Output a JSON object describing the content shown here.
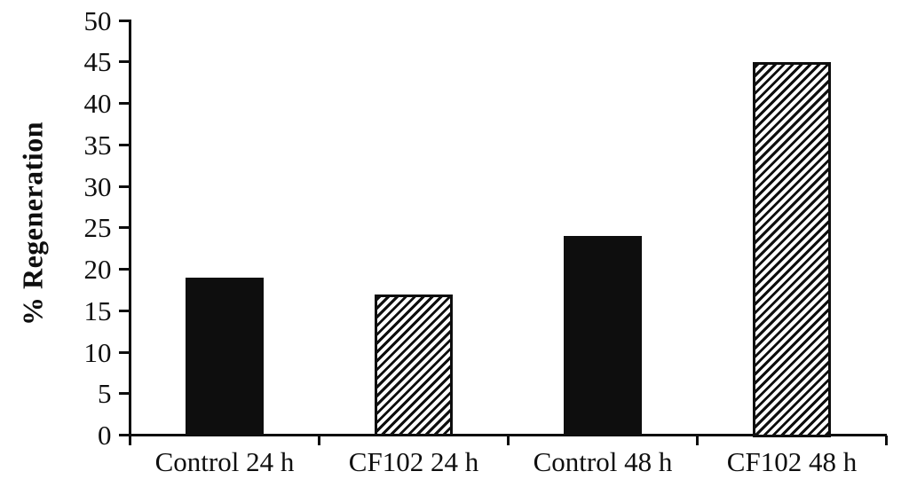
{
  "figure": {
    "background_color": "#ffffff",
    "ink_color": "#0e0e0e"
  },
  "chart_data": {
    "type": "bar",
    "title": "",
    "xlabel": "",
    "ylabel": "% Regeneration",
    "categories": [
      "Control 24 h",
      "CF102 24 h",
      "Control 48 h",
      "CF102 48 h"
    ],
    "values": [
      19,
      17,
      24,
      45
    ],
    "bar_styles": [
      "solid-black",
      "diagonal-hatch",
      "solid-black",
      "diagonal-hatch"
    ],
    "hatch_direction": "forward-slash",
    "ylim": [
      0,
      50
    ],
    "yticks": [
      0,
      5,
      10,
      15,
      20,
      25,
      30,
      35,
      40,
      45,
      50
    ],
    "grid": false,
    "legend_position": "none"
  }
}
